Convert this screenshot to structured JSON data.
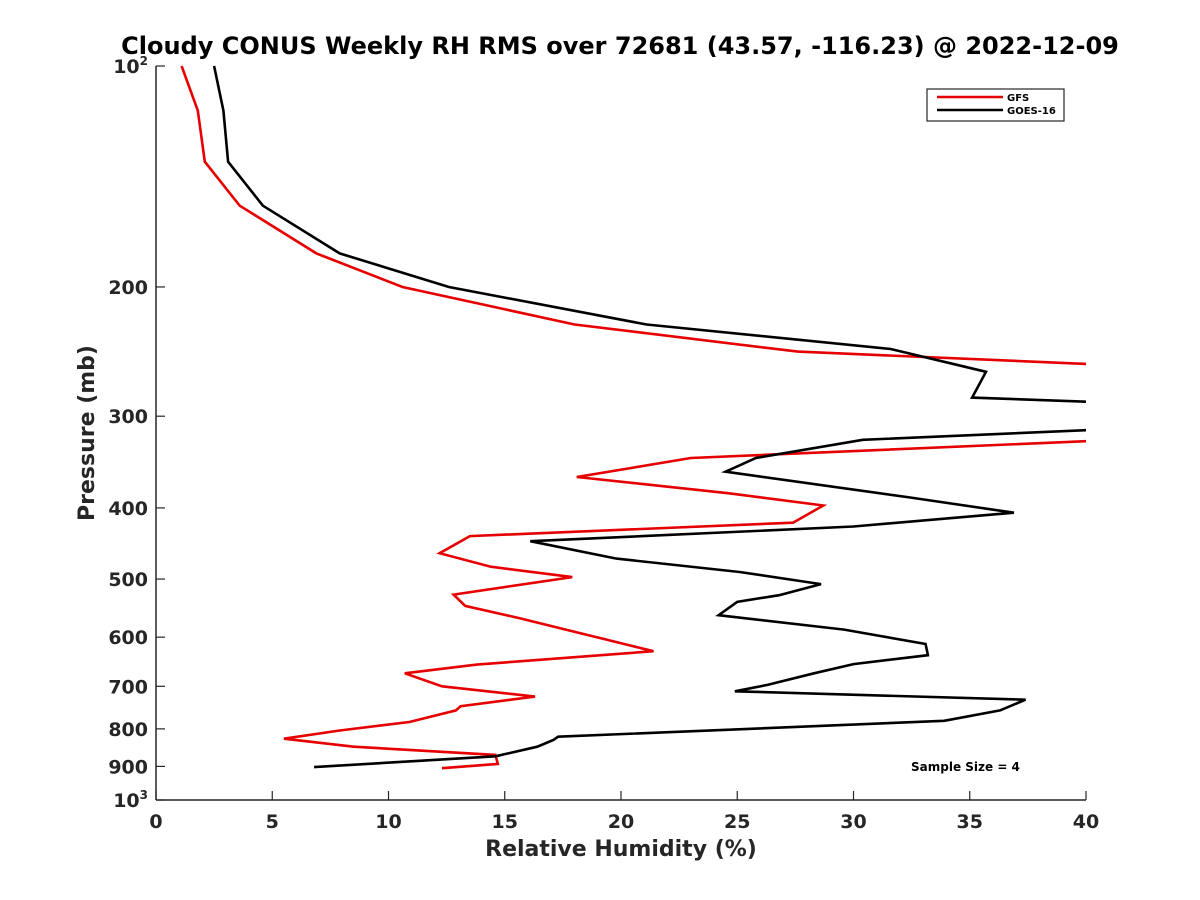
{
  "chart_data": {
    "type": "line",
    "title": "Cloudy CONUS Weekly RH RMS over 72681 (43.57, -116.23) @ 2022-12-09",
    "xlabel": "Relative Humidity (%)",
    "ylabel": "Pressure (mb)",
    "xlim": [
      0,
      40
    ],
    "ylim": [
      100,
      1000
    ],
    "yscale": "log",
    "y_reversed": true,
    "grid": false,
    "legend_position": "top-right",
    "x_ticks": [
      "0",
      "5",
      "10",
      "15",
      "20",
      "25",
      "30",
      "35",
      "40"
    ],
    "y_ticks": [
      {
        "value": 100,
        "base": "10",
        "exp": "2"
      },
      {
        "value": 200,
        "label": "200"
      },
      {
        "value": 300,
        "label": "300"
      },
      {
        "value": 400,
        "label": "400"
      },
      {
        "value": 500,
        "label": "500"
      },
      {
        "value": 600,
        "label": "600"
      },
      {
        "value": 700,
        "label": "700"
      },
      {
        "value": 800,
        "label": "800"
      },
      {
        "value": 900,
        "label": "900"
      },
      {
        "value": 1000,
        "base": "10",
        "exp": "3"
      }
    ],
    "series": [
      {
        "name": "GFS",
        "color": "#e60000",
        "points": [
          [
            1.1,
            100
          ],
          [
            1.8,
            115
          ],
          [
            2.1,
            135
          ],
          [
            3.6,
            155
          ],
          [
            6.9,
            180
          ],
          [
            10.6,
            200
          ],
          [
            18.0,
            225
          ],
          [
            27.6,
            245
          ],
          [
            40.5,
            255
          ],
          [
            40.5,
            324
          ],
          [
            23.0,
            342
          ],
          [
            18.1,
            363
          ],
          [
            24.6,
            382
          ],
          [
            28.7,
            397
          ],
          [
            27.4,
            419
          ],
          [
            13.5,
            437
          ],
          [
            12.2,
            461
          ],
          [
            14.4,
            481
          ],
          [
            17.9,
            497
          ],
          [
            12.8,
            525
          ],
          [
            13.3,
            544
          ],
          [
            15.6,
            565
          ],
          [
            19.4,
            605
          ],
          [
            21.4,
            627
          ],
          [
            13.8,
            654
          ],
          [
            10.7,
            672
          ],
          [
            12.3,
            700
          ],
          [
            16.3,
            723
          ],
          [
            13.1,
            745
          ],
          [
            12.9,
            755
          ],
          [
            10.9,
            783
          ],
          [
            7.9,
            804
          ],
          [
            5.5,
            825
          ],
          [
            8.5,
            846
          ],
          [
            14.6,
            868
          ],
          [
            14.7,
            893
          ],
          [
            12.3,
            905
          ]
        ]
      },
      {
        "name": "GOES-16",
        "color": "#000000",
        "points": [
          [
            2.5,
            100
          ],
          [
            2.9,
            115
          ],
          [
            3.1,
            135
          ],
          [
            4.6,
            155
          ],
          [
            7.9,
            180
          ],
          [
            12.6,
            200
          ],
          [
            21.1,
            225
          ],
          [
            31.6,
            243
          ],
          [
            35.7,
            261
          ],
          [
            35.1,
            283
          ],
          [
            40.5,
            287
          ],
          [
            40.5,
            313
          ],
          [
            30.4,
            323
          ],
          [
            25.8,
            342
          ],
          [
            24.5,
            357
          ],
          [
            32.4,
            387
          ],
          [
            36.9,
            406
          ],
          [
            30.0,
            424
          ],
          [
            16.1,
            444
          ],
          [
            19.8,
            469
          ],
          [
            25.1,
            489
          ],
          [
            28.6,
            508
          ],
          [
            26.8,
            526
          ],
          [
            25.0,
            537
          ],
          [
            24.2,
            560
          ],
          [
            29.6,
            586
          ],
          [
            33.1,
            613
          ],
          [
            33.2,
            635
          ],
          [
            30.0,
            653
          ],
          [
            28.3,
            672
          ],
          [
            26.3,
            697
          ],
          [
            24.9,
            711
          ],
          [
            37.4,
            730
          ],
          [
            36.3,
            755
          ],
          [
            33.9,
            780
          ],
          [
            17.3,
            820
          ],
          [
            17.1,
            828
          ],
          [
            16.4,
            846
          ],
          [
            14.6,
            872
          ],
          [
            6.8,
            902
          ]
        ]
      }
    ],
    "annotation": "Sample Size = 4"
  }
}
